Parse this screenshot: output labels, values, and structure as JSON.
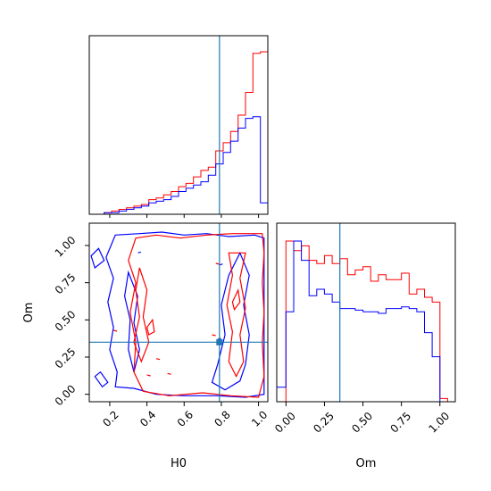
{
  "chart_data": {
    "type": "corner",
    "parameters": [
      "H0",
      "Om"
    ],
    "truths": {
      "H0": 0.79,
      "Om": 0.35
    },
    "truth_color": "#1f77b4",
    "series_colors": {
      "red": "#ff0000",
      "blue": "#0000ff"
    },
    "hist_H0": {
      "xlim": [
        0.09,
        1.05
      ],
      "bin_edges": [
        0.09,
        0.13,
        0.17,
        0.21,
        0.25,
        0.29,
        0.33,
        0.37,
        0.41,
        0.45,
        0.49,
        0.53,
        0.57,
        0.61,
        0.65,
        0.69,
        0.73,
        0.77,
        0.81,
        0.85,
        0.89,
        0.93,
        0.97,
        1.01,
        1.05
      ],
      "red": [
        0.0,
        0.0,
        0.01,
        0.02,
        0.03,
        0.04,
        0.05,
        0.06,
        0.09,
        0.1,
        0.12,
        0.14,
        0.17,
        0.19,
        0.23,
        0.27,
        0.29,
        0.39,
        0.44,
        0.51,
        0.61,
        0.75,
        0.99,
        1.0
      ],
      "blue": [
        0.0,
        0.0,
        0.01,
        0.01,
        0.02,
        0.03,
        0.04,
        0.05,
        0.07,
        0.08,
        0.09,
        0.11,
        0.14,
        0.16,
        0.18,
        0.2,
        0.24,
        0.31,
        0.38,
        0.45,
        0.53,
        0.59,
        0.6,
        0.07
      ]
    },
    "hist_Om": {
      "xlim": [
        -0.06,
        1.1
      ],
      "bin_edges": [
        -0.06,
        0.0,
        0.05,
        0.1,
        0.15,
        0.2,
        0.25,
        0.3,
        0.35,
        0.4,
        0.45,
        0.5,
        0.55,
        0.6,
        0.65,
        0.7,
        0.75,
        0.8,
        0.85,
        0.9,
        0.95,
        1.0,
        1.05,
        1.1
      ],
      "red": [
        0.0,
        1.0,
        0.94,
        0.97,
        0.88,
        0.86,
        0.91,
        0.86,
        0.89,
        0.79,
        0.82,
        0.84,
        0.75,
        0.79,
        0.76,
        0.76,
        0.8,
        0.67,
        0.7,
        0.65,
        0.62,
        0.02,
        0.0
      ],
      "blue": [
        0.09,
        0.56,
        1.0,
        0.88,
        0.66,
        0.7,
        0.67,
        0.62,
        0.58,
        0.58,
        0.57,
        0.56,
        0.56,
        0.55,
        0.58,
        0.58,
        0.59,
        0.58,
        0.56,
        0.43,
        0.28,
        0.0,
        0.0
      ]
    },
    "scatter": {
      "xlim": [
        0.09,
        1.05
      ],
      "ylim": [
        -0.05,
        1.15
      ],
      "xticks": [
        "0.2",
        "0.4",
        "0.6",
        "0.8",
        "1.0"
      ],
      "yticks": [
        "0.00",
        "0.25",
        "0.50",
        "0.75",
        "1.00"
      ],
      "xtick_values": [
        0.2,
        0.4,
        0.6,
        0.8,
        1.0
      ],
      "ytick_values": [
        0.0,
        0.25,
        0.5,
        0.75,
        1.0
      ],
      "blue_contours": [
        [
          [
            0.23,
            1.07
          ],
          [
            0.36,
            1.08
          ],
          [
            0.48,
            1.09
          ],
          [
            0.6,
            1.07
          ],
          [
            0.72,
            1.08
          ],
          [
            0.84,
            1.06
          ],
          [
            0.98,
            1.07
          ],
          [
            1.03,
            1.05
          ],
          [
            1.03,
            0.0
          ],
          [
            0.93,
            -0.02
          ],
          [
            0.78,
            -0.01
          ],
          [
            0.6,
            -0.01
          ],
          [
            0.45,
            0.0
          ],
          [
            0.33,
            0.04
          ],
          [
            0.23,
            0.05
          ],
          [
            0.24,
            0.15
          ],
          [
            0.2,
            0.3
          ],
          [
            0.22,
            0.45
          ],
          [
            0.19,
            0.62
          ],
          [
            0.22,
            0.78
          ],
          [
            0.18,
            0.92
          ],
          [
            0.23,
            1.07
          ]
        ],
        [
          [
            0.9,
            0.95
          ],
          [
            0.95,
            0.8
          ],
          [
            0.92,
            0.6
          ],
          [
            0.95,
            0.4
          ],
          [
            0.93,
            0.2
          ],
          [
            0.9,
            0.09
          ],
          [
            0.82,
            0.03
          ],
          [
            0.75,
            0.08
          ],
          [
            0.78,
            0.2
          ],
          [
            0.82,
            0.4
          ],
          [
            0.8,
            0.6
          ],
          [
            0.84,
            0.8
          ],
          [
            0.9,
            0.95
          ]
        ],
        [
          [
            0.3,
            0.82
          ],
          [
            0.35,
            0.66
          ],
          [
            0.33,
            0.48
          ],
          [
            0.36,
            0.3
          ],
          [
            0.33,
            0.15
          ],
          [
            0.3,
            0.3
          ],
          [
            0.31,
            0.5
          ],
          [
            0.28,
            0.66
          ],
          [
            0.3,
            0.82
          ]
        ],
        [
          [
            0.1,
            0.93
          ],
          [
            0.14,
            0.98
          ],
          [
            0.17,
            0.9
          ],
          [
            0.12,
            0.85
          ],
          [
            0.1,
            0.93
          ]
        ],
        [
          [
            0.12,
            0.12
          ],
          [
            0.16,
            0.05
          ],
          [
            0.19,
            0.08
          ],
          [
            0.15,
            0.15
          ],
          [
            0.12,
            0.12
          ]
        ]
      ],
      "red_contours": [
        [
          [
            0.34,
            1.05
          ],
          [
            0.45,
            1.07
          ],
          [
            0.58,
            1.05
          ],
          [
            0.72,
            1.07
          ],
          [
            0.86,
            1.08
          ],
          [
            1.02,
            1.08
          ],
          [
            1.03,
            0.95
          ],
          [
            1.02,
            0.75
          ],
          [
            1.03,
            0.55
          ],
          [
            1.02,
            0.35
          ],
          [
            1.03,
            0.12
          ],
          [
            1.0,
            -0.02
          ],
          [
            0.85,
            -0.01
          ],
          [
            0.7,
            0.01
          ],
          [
            0.52,
            -0.01
          ],
          [
            0.38,
            0.02
          ],
          [
            0.33,
            0.15
          ],
          [
            0.34,
            0.35
          ],
          [
            0.31,
            0.55
          ],
          [
            0.34,
            0.75
          ],
          [
            0.3,
            0.9
          ],
          [
            0.34,
            1.05
          ]
        ],
        [
          [
            0.93,
            0.95
          ],
          [
            0.9,
            0.78
          ],
          [
            0.93,
            0.58
          ],
          [
            0.9,
            0.4
          ],
          [
            0.92,
            0.22
          ],
          [
            0.88,
            0.12
          ],
          [
            0.84,
            0.22
          ],
          [
            0.86,
            0.42
          ],
          [
            0.83,
            0.6
          ],
          [
            0.86,
            0.8
          ],
          [
            0.84,
            0.95
          ],
          [
            0.93,
            0.95
          ]
        ],
        [
          [
            0.36,
            0.85
          ],
          [
            0.4,
            0.7
          ],
          [
            0.38,
            0.52
          ],
          [
            0.41,
            0.35
          ],
          [
            0.37,
            0.22
          ],
          [
            0.33,
            0.35
          ],
          [
            0.36,
            0.52
          ],
          [
            0.34,
            0.7
          ],
          [
            0.36,
            0.85
          ]
        ],
        [
          [
            0.4,
            0.45
          ],
          [
            0.43,
            0.5
          ],
          [
            0.44,
            0.42
          ],
          [
            0.41,
            0.4
          ],
          [
            0.4,
            0.45
          ]
        ],
        [
          [
            0.86,
            0.62
          ],
          [
            0.89,
            0.7
          ],
          [
            0.9,
            0.62
          ],
          [
            0.87,
            0.57
          ],
          [
            0.86,
            0.62
          ]
        ]
      ],
      "red_specks": [
        [
          0.78,
          0.88
        ],
        [
          0.76,
          0.4
        ],
        [
          0.23,
          0.43
        ],
        [
          0.41,
          0.13
        ],
        [
          0.46,
          0.24
        ],
        [
          0.52,
          0.14
        ]
      ],
      "blue_specks": [
        [
          0.36,
          0.95
        ],
        [
          0.8,
          0.87
        ],
        [
          0.79,
          0.37
        ]
      ]
    },
    "xlabels": {
      "bottom_left": "H0",
      "bottom_right": "Om"
    },
    "ylabels": {
      "mid_left": "Om"
    },
    "hist_H0_xticks": [
      "0.2",
      "0.4",
      "0.6",
      "0.8",
      "1.0"
    ],
    "hist_Om_xticks": [
      "0.00",
      "0.25",
      "0.50",
      "0.75",
      "1.00"
    ],
    "hist_Om_xtick_values": [
      0.0,
      0.25,
      0.5,
      0.75,
      1.0
    ]
  }
}
